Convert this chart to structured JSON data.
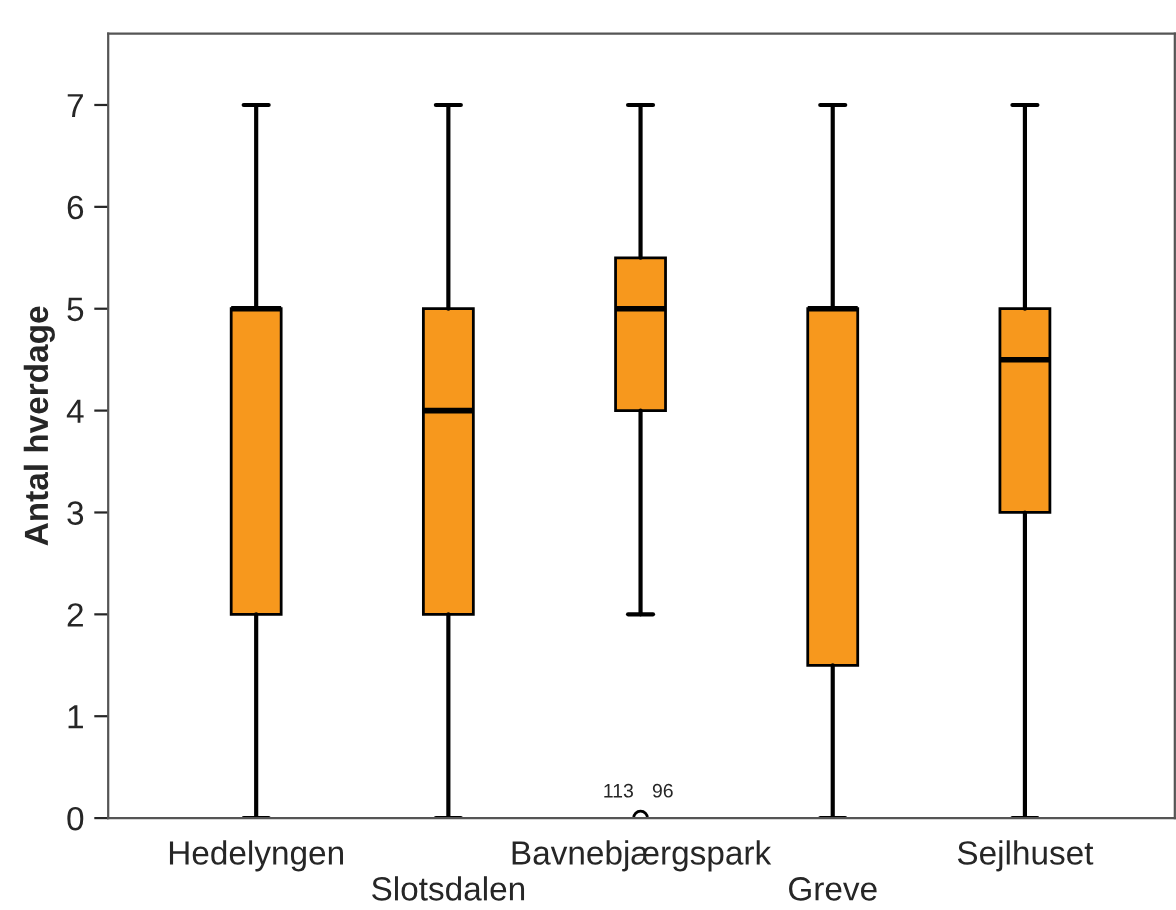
{
  "chart_data": {
    "type": "box",
    "ylabel": "Antal hverdage",
    "categories": [
      "Hedelyngen",
      "Slotsdalen",
      "Bavnebjærgspark",
      "Greve",
      "Sejlhuset"
    ],
    "color": "#f7981d",
    "boxes": [
      {
        "low": 0,
        "q1": 2,
        "median": 5,
        "q3": 5,
        "high": 7
      },
      {
        "low": 0,
        "q1": 2,
        "median": 4,
        "q3": 5,
        "high": 7
      },
      {
        "low": 2,
        "q1": 4,
        "median": 5,
        "q3": 5.5,
        "high": 7,
        "outliers": [
          0
        ]
      },
      {
        "low": 0,
        "q1": 1.5,
        "median": 5,
        "q3": 5,
        "high": 7
      },
      {
        "low": 0,
        "q1": 3,
        "median": 4.5,
        "q3": 5,
        "high": 7
      }
    ],
    "annotations": [
      "113",
      "96"
    ],
    "ylim": [
      0,
      7.7
    ],
    "yticks": [
      0,
      1,
      2,
      3,
      4,
      5,
      6,
      7
    ],
    "grid": false,
    "legend": false
  }
}
